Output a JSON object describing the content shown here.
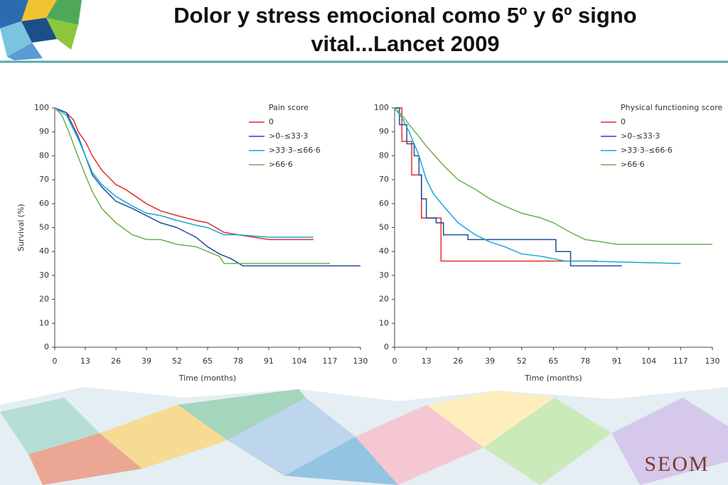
{
  "slide": {
    "title": "Dolor y stress emocional como 5º y 6º signo vital...Lancet 2009",
    "logo": "SEOM"
  },
  "chart_data": [
    {
      "type": "line",
      "step": true,
      "xlabel": "Time (months)",
      "ylabel": "Survival (%)",
      "legend_title": "Pain score",
      "xlim": [
        0,
        130
      ],
      "xticks": [
        0,
        13,
        26,
        39,
        52,
        65,
        78,
        91,
        104,
        117,
        130
      ],
      "ylim": [
        0,
        100
      ],
      "yticks": [
        0,
        10,
        20,
        30,
        40,
        50,
        60,
        70,
        80,
        90,
        100
      ],
      "series": [
        {
          "name": "0",
          "color": "#e0302a",
          "x": [
            0,
            5,
            8,
            10,
            13,
            16,
            20,
            26,
            30,
            39,
            45,
            52,
            60,
            65,
            72,
            78,
            91,
            110
          ],
          "values": [
            100,
            98,
            95,
            90,
            86,
            80,
            74,
            68,
            66,
            60,
            57,
            55,
            53,
            52,
            48,
            47,
            45,
            45
          ]
        },
        {
          "name": ">0–≤33·3",
          "color": "#1f4e9c",
          "x": [
            0,
            5,
            10,
            13,
            16,
            20,
            26,
            33,
            39,
            45,
            52,
            60,
            65,
            70,
            75,
            80,
            130
          ],
          "values": [
            100,
            98,
            88,
            80,
            72,
            67,
            61,
            58,
            55,
            52,
            50,
            46,
            42,
            39,
            37,
            34,
            34
          ]
        },
        {
          "name": ">33·3–≤66·6",
          "color": "#1aa6d6",
          "x": [
            0,
            5,
            10,
            13,
            16,
            20,
            26,
            33,
            39,
            45,
            52,
            60,
            65,
            72,
            78,
            91,
            110
          ],
          "values": [
            100,
            97,
            87,
            80,
            73,
            68,
            63,
            59,
            56,
            55,
            53,
            51,
            50,
            47,
            47,
            46,
            46
          ]
        },
        {
          "name": ">66·6",
          "color": "#6ab04c",
          "x": [
            0,
            3,
            6,
            9,
            13,
            16,
            20,
            26,
            33,
            39,
            45,
            52,
            60,
            65,
            70,
            72,
            117
          ],
          "values": [
            100,
            97,
            90,
            82,
            72,
            65,
            58,
            52,
            47,
            45,
            45,
            43,
            42,
            40,
            38,
            35,
            35
          ]
        }
      ]
    },
    {
      "type": "line",
      "step": true,
      "xlabel": "Time (months)",
      "legend_title": "Physical functioning score",
      "xlim": [
        0,
        130
      ],
      "xticks": [
        0,
        13,
        26,
        39,
        52,
        65,
        78,
        91,
        104,
        117,
        130
      ],
      "ylim": [
        0,
        100
      ],
      "yticks": [
        0,
        10,
        20,
        30,
        40,
        50,
        60,
        70,
        80,
        90,
        100
      ],
      "series": [
        {
          "name": "0",
          "color": "#e0302a",
          "x": [
            0,
            3,
            3,
            7,
            7,
            11,
            11,
            19,
            19,
            83
          ],
          "values": [
            100,
            100,
            86,
            86,
            72,
            72,
            54,
            54,
            36,
            36
          ]
        },
        {
          "name": ">0–≤33·3",
          "color": "#1f4e9c",
          "x": [
            0,
            2,
            2,
            5,
            5,
            8,
            8,
            10,
            10,
            11,
            11,
            13,
            13,
            17,
            17,
            20,
            20,
            30,
            30,
            66,
            66,
            72,
            72,
            93
          ],
          "values": [
            100,
            100,
            93,
            93,
            85,
            85,
            80,
            80,
            72,
            72,
            62,
            62,
            54,
            54,
            52,
            52,
            47,
            47,
            45,
            45,
            40,
            40,
            34,
            34
          ]
        },
        {
          "name": ">33·3–≤66·6",
          "color": "#1aa6d6",
          "x": [
            0,
            3,
            6,
            10,
            13,
            16,
            20,
            26,
            33,
            39,
            45,
            52,
            60,
            65,
            70,
            78,
            117
          ],
          "values": [
            100,
            96,
            90,
            80,
            70,
            64,
            59,
            52,
            47,
            44,
            42,
            39,
            38,
            37,
            36,
            36,
            35
          ]
        },
        {
          "name": ">66·6",
          "color": "#6ab04c",
          "x": [
            0,
            3,
            6,
            10,
            13,
            20,
            26,
            33,
            39,
            45,
            52,
            60,
            65,
            72,
            78,
            85,
            91,
            110,
            130
          ],
          "values": [
            100,
            97,
            93,
            88,
            84,
            76,
            70,
            66,
            62,
            59,
            56,
            54,
            52,
            48,
            45,
            44,
            43,
            43,
            43
          ]
        }
      ]
    }
  ]
}
